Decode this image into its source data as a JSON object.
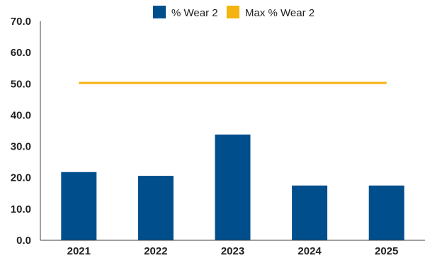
{
  "chart_data": {
    "type": "bar",
    "categories": [
      "2021",
      "2022",
      "2023",
      "2024",
      "2025"
    ],
    "series": [
      {
        "name": "% Wear 2",
        "kind": "bar",
        "color": "#004f8c",
        "values": [
          21.8,
          20.6,
          33.8,
          17.5,
          17.5
        ]
      },
      {
        "name": "Max % Wear 2",
        "kind": "line",
        "color": "#f5b30f",
        "values": [
          50.3,
          50.3,
          50.3,
          50.3,
          50.3
        ]
      }
    ],
    "ylim": [
      0,
      70
    ],
    "yticks": [
      "0.0",
      "10.0",
      "20.0",
      "30.0",
      "40.0",
      "50.0",
      "60.0",
      "70.0"
    ],
    "grid": false,
    "legend": "top-center"
  }
}
